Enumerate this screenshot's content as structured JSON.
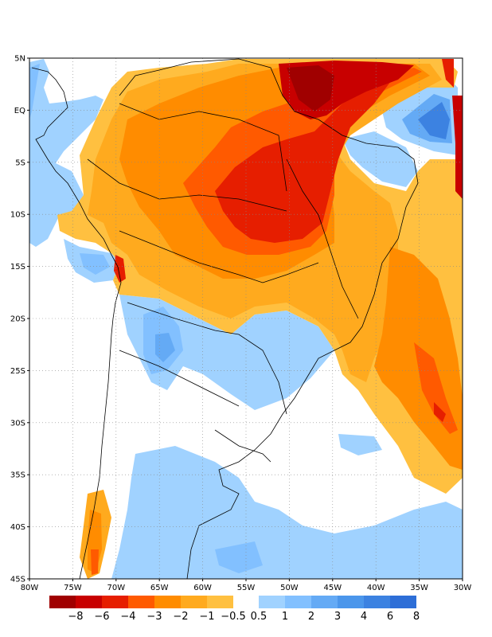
{
  "map": {
    "lat_labels": [
      "5N",
      "EQ",
      "5S",
      "10S",
      "15S",
      "20S",
      "25S",
      "30S",
      "35S",
      "40S",
      "45S"
    ],
    "lon_labels": [
      "80W",
      "75W",
      "70W",
      "65W",
      "60W",
      "55W",
      "50W",
      "45W",
      "40W",
      "35W",
      "30W"
    ]
  },
  "colorbar": {
    "negative_labels": [
      "−8",
      "−6",
      "−4",
      "−3",
      "−2",
      "−1",
      "−0.5"
    ],
    "positive_labels": [
      "0.5",
      "1",
      "2",
      "3",
      "4",
      "6",
      "8"
    ],
    "negative_colors": [
      "#a00000",
      "#c80000",
      "#e61e00",
      "#ff5a00",
      "#ff8c00",
      "#ffaa1e",
      "#ffc040"
    ],
    "positive_colors": [
      "#a0d2ff",
      "#82c0ff",
      "#64aaf5",
      "#4b96eb",
      "#3c82e1",
      "#2d6ed7"
    ]
  },
  "colors": {
    "lightblue": "#a0d2ff",
    "blue": "#82c0ff",
    "midblue": "#64aaf5",
    "darkblue": "#3c82e1",
    "lightorange": "#ffc040",
    "orange": "#ffaa1e",
    "darkorange": "#ff8c00",
    "redorange": "#ff5a00",
    "red": "#e61e00",
    "darkred": "#c80000",
    "maroon": "#a00000"
  }
}
